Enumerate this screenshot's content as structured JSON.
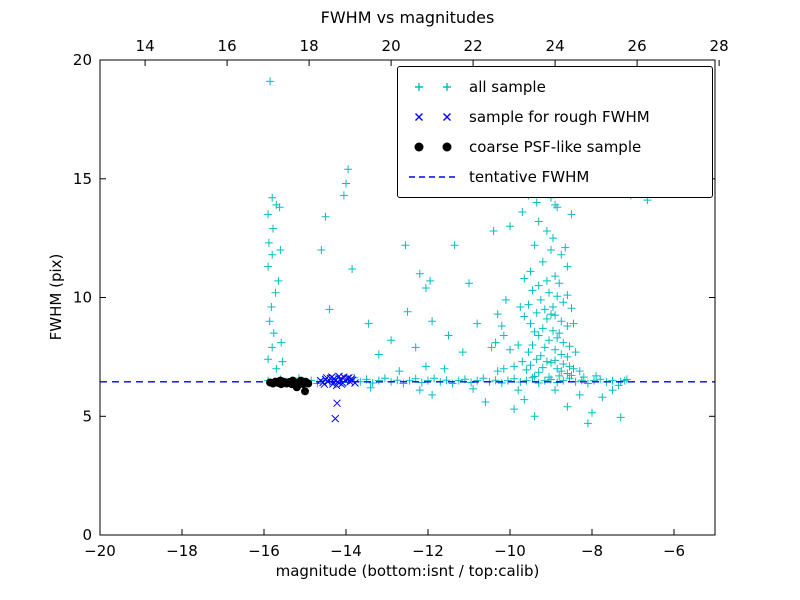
{
  "chart_data": {
    "type": "scatter",
    "title": "FWHM vs magnitudes",
    "xlabel": "magnitude (bottom:isnt / top:calib)",
    "ylabel": "FWHM (pix)",
    "xlim": [
      -20,
      -5
    ],
    "ylim": [
      0,
      20
    ],
    "grid": false,
    "legend_position": "upper right",
    "axes": {
      "x_ticks": [
        -20,
        -18,
        -16,
        -14,
        -12,
        -10,
        -8,
        -6
      ],
      "x_tick_labels": [
        "−20",
        "−18",
        "−16",
        "−14",
        "−12",
        "−10",
        "−8",
        "−6"
      ],
      "top_ticks": [
        14,
        16,
        18,
        20,
        22,
        24,
        26,
        28
      ],
      "top_tick_labels": [
        "14",
        "16",
        "18",
        "20",
        "22",
        "24",
        "26",
        "28"
      ],
      "top_axis_range": [
        12.9,
        27.9
      ],
      "y_ticks": [
        0,
        5,
        10,
        15,
        20
      ],
      "y_tick_labels": [
        "0",
        "5",
        "10",
        "15",
        "20"
      ],
      "axis_color": "#000000",
      "background": "#ffffff"
    },
    "series": [
      {
        "name": "all sample",
        "marker": "+",
        "color": "#00bfbf",
        "points": [
          [
            -15.9,
            6.5
          ],
          [
            -15.75,
            6.4
          ],
          [
            -15.6,
            6.55
          ],
          [
            -15.45,
            6.45
          ],
          [
            -15.3,
            6.5
          ],
          [
            -15.15,
            6.6
          ],
          [
            -15.0,
            6.45
          ],
          [
            -14.85,
            6.5
          ],
          [
            -14.7,
            6.38
          ],
          [
            -14.55,
            6.52
          ],
          [
            -14.4,
            6.45
          ],
          [
            -14.25,
            6.58
          ],
          [
            -14.1,
            6.42
          ],
          [
            -13.95,
            6.5
          ],
          [
            -13.8,
            6.62
          ],
          [
            -13.65,
            6.45
          ],
          [
            -13.5,
            6.55
          ],
          [
            -13.35,
            6.4
          ],
          [
            -13.2,
            6.5
          ],
          [
            -13.05,
            6.6
          ],
          [
            -12.9,
            6.45
          ],
          [
            -12.75,
            6.52
          ],
          [
            -12.6,
            6.38
          ],
          [
            -12.45,
            6.5
          ],
          [
            -12.3,
            6.58
          ],
          [
            -12.15,
            6.42
          ],
          [
            -12.0,
            6.5
          ],
          [
            -11.85,
            6.6
          ],
          [
            -11.7,
            6.44
          ],
          [
            -11.55,
            6.52
          ],
          [
            -11.4,
            6.38
          ],
          [
            -11.25,
            6.5
          ],
          [
            -11.1,
            6.56
          ],
          [
            -10.95,
            6.42
          ],
          [
            -10.8,
            6.5
          ],
          [
            -10.65,
            6.6
          ],
          [
            -10.5,
            6.45
          ],
          [
            -10.35,
            6.52
          ],
          [
            -10.2,
            6.4
          ],
          [
            -10.05,
            6.5
          ],
          [
            -9.9,
            6.58
          ],
          [
            -9.75,
            6.44
          ],
          [
            -9.6,
            6.5
          ],
          [
            -9.45,
            6.62
          ],
          [
            -9.3,
            6.4
          ],
          [
            -9.15,
            6.5
          ],
          [
            -9.0,
            6.55
          ],
          [
            -8.85,
            6.42
          ],
          [
            -8.7,
            6.5
          ],
          [
            -8.55,
            6.6
          ],
          [
            -8.4,
            6.45
          ],
          [
            -8.25,
            6.52
          ],
          [
            -8.1,
            6.38
          ],
          [
            -7.95,
            6.5
          ],
          [
            -7.8,
            6.56
          ],
          [
            -7.65,
            6.44
          ],
          [
            -7.5,
            6.5
          ],
          [
            -7.35,
            6.3
          ],
          [
            -12.7,
            6.9
          ],
          [
            -12.2,
            6.1
          ],
          [
            -11.6,
            7.0
          ],
          [
            -10.9,
            6.15
          ],
          [
            -10.3,
            6.9
          ],
          [
            -13.4,
            6.2
          ],
          [
            -9.8,
            6.1
          ],
          [
            -12.05,
            7.1
          ],
          [
            -15.85,
            19.1
          ],
          [
            -15.8,
            14.2
          ],
          [
            -15.7,
            13.9
          ],
          [
            -15.9,
            13.5
          ],
          [
            -15.78,
            12.9
          ],
          [
            -15.88,
            12.3
          ],
          [
            -15.8,
            11.8
          ],
          [
            -15.9,
            11.3
          ],
          [
            -15.72,
            10.2
          ],
          [
            -15.82,
            9.6
          ],
          [
            -15.86,
            9.0
          ],
          [
            -15.76,
            8.5
          ],
          [
            -15.8,
            7.9
          ],
          [
            -15.9,
            7.4
          ],
          [
            -15.7,
            7.0
          ],
          [
            -15.6,
            12.0
          ],
          [
            -15.62,
            13.8
          ],
          [
            -15.65,
            10.7
          ],
          [
            -15.58,
            8.1
          ],
          [
            -15.55,
            7.3
          ],
          [
            -14.6,
            12.0
          ],
          [
            -13.95,
            15.4
          ],
          [
            -14.0,
            14.8
          ],
          [
            -14.05,
            14.3
          ],
          [
            -14.5,
            13.4
          ],
          [
            -13.85,
            11.2
          ],
          [
            -14.4,
            9.5
          ],
          [
            -12.55,
            12.2
          ],
          [
            -11.35,
            12.2
          ],
          [
            -12.2,
            11.0
          ],
          [
            -11.95,
            10.7
          ],
          [
            -12.05,
            10.4
          ],
          [
            -12.5,
            9.4
          ],
          [
            -12.9,
            8.2
          ],
          [
            -12.3,
            7.9
          ],
          [
            -11.9,
            9.0
          ],
          [
            -11.5,
            8.4
          ],
          [
            -11.15,
            7.7
          ],
          [
            -11.0,
            10.6
          ],
          [
            -10.8,
            8.9
          ],
          [
            -13.2,
            7.6
          ],
          [
            -13.45,
            8.9
          ],
          [
            -10.45,
            7.9
          ],
          [
            -10.3,
            9.3
          ],
          [
            -10.15,
            8.4
          ],
          [
            -9.55,
            14.3
          ],
          [
            -9.35,
            14.0
          ],
          [
            -9.2,
            14.6
          ],
          [
            -9.0,
            14.2
          ],
          [
            -8.85,
            13.8
          ],
          [
            -8.6,
            14.9
          ],
          [
            -8.5,
            13.5
          ],
          [
            -9.3,
            13.2
          ],
          [
            -9.7,
            13.6
          ],
          [
            -8.9,
            15.2
          ],
          [
            -9.1,
            12.8
          ],
          [
            -8.95,
            12.5
          ],
          [
            -10.0,
            13.0
          ],
          [
            -8.9,
            13.9
          ],
          [
            -7.05,
            14.3
          ],
          [
            -6.65,
            14.1
          ],
          [
            -10.4,
            12.8
          ],
          [
            -9.4,
            12.2
          ],
          [
            -9.0,
            12.0
          ],
          [
            -8.75,
            11.8
          ],
          [
            -9.2,
            11.5
          ],
          [
            -8.6,
            11.3
          ],
          [
            -9.5,
            11.1
          ],
          [
            -8.9,
            10.9
          ],
          [
            -9.1,
            10.7
          ],
          [
            -8.8,
            10.6
          ],
          [
            -9.3,
            10.5
          ],
          [
            -8.65,
            12.1
          ],
          [
            -9.65,
            10.8
          ],
          [
            -9.45,
            10.3
          ],
          [
            -9.05,
            10.2
          ],
          [
            -8.85,
            10.05
          ],
          [
            -9.25,
            9.9
          ],
          [
            -8.7,
            9.8
          ],
          [
            -9.55,
            9.7
          ],
          [
            -8.95,
            9.6
          ],
          [
            -9.15,
            9.5
          ],
          [
            -8.6,
            10.1
          ],
          [
            -10.1,
            9.9
          ],
          [
            -8.5,
            9.55
          ],
          [
            -9.75,
            9.6
          ],
          [
            -9.35,
            9.35
          ],
          [
            -8.9,
            9.25
          ],
          [
            -9.1,
            9.1
          ],
          [
            -8.75,
            9.0
          ],
          [
            -9.5,
            8.9
          ],
          [
            -8.6,
            8.8
          ],
          [
            -9.2,
            8.7
          ],
          [
            -8.95,
            8.6
          ],
          [
            -9.4,
            8.55
          ],
          [
            -8.8,
            8.5
          ],
          [
            -10.2,
            8.8
          ],
          [
            -9.0,
            9.3
          ],
          [
            -8.45,
            8.9
          ],
          [
            -9.65,
            9.2
          ],
          [
            -9.3,
            8.4
          ],
          [
            -8.85,
            8.3
          ],
          [
            -9.05,
            8.2
          ],
          [
            -8.7,
            8.1
          ],
          [
            -9.45,
            8.0
          ],
          [
            -8.55,
            7.95
          ],
          [
            -9.15,
            7.9
          ],
          [
            -8.9,
            7.8
          ],
          [
            -9.55,
            7.7
          ],
          [
            -8.75,
            7.6
          ],
          [
            -9.25,
            7.55
          ],
          [
            -8.6,
            7.5
          ],
          [
            -10.0,
            7.8
          ],
          [
            -10.35,
            8.1
          ],
          [
            -8.4,
            7.7
          ],
          [
            -9.8,
            8.0
          ],
          [
            -9.35,
            7.4
          ],
          [
            -8.9,
            7.35
          ],
          [
            -9.1,
            7.3
          ],
          [
            -8.7,
            7.2
          ],
          [
            -9.5,
            7.15
          ],
          [
            -8.55,
            7.1
          ],
          [
            -9.2,
            7.05
          ],
          [
            -8.85,
            7.0
          ],
          [
            -9.6,
            6.95
          ],
          [
            -8.75,
            6.9
          ],
          [
            -9.3,
            6.85
          ],
          [
            -8.6,
            6.8
          ],
          [
            -9.0,
            7.25
          ],
          [
            -9.9,
            7.1
          ],
          [
            -10.15,
            7.0
          ],
          [
            -8.45,
            7.0
          ],
          [
            -8.3,
            6.9
          ],
          [
            -9.7,
            7.3
          ],
          [
            -9.05,
            6.65
          ],
          [
            -8.8,
            6.7
          ],
          [
            -8.5,
            6.72
          ],
          [
            -9.4,
            6.68
          ],
          [
            -8.2,
            6.65
          ],
          [
            -7.9,
            6.7
          ],
          [
            -11.9,
            5.9
          ],
          [
            -10.6,
            5.6
          ],
          [
            -9.9,
            5.3
          ],
          [
            -9.4,
            5.0
          ],
          [
            -8.6,
            5.4
          ],
          [
            -8.1,
            4.7
          ],
          [
            -7.75,
            5.8
          ],
          [
            -7.5,
            6.1
          ],
          [
            -8.3,
            5.9
          ],
          [
            -9.65,
            5.7
          ],
          [
            -8.0,
            5.15
          ],
          [
            -8.9,
            6.1
          ],
          [
            -7.2,
            6.5
          ],
          [
            -7.15,
            6.55
          ],
          [
            -7.3,
            6.45
          ],
          [
            -7.3,
            4.95
          ]
        ]
      },
      {
        "name": "sample for rough FWHM",
        "marker": "x",
        "color": "#0000ff",
        "points": [
          [
            -14.62,
            6.5
          ],
          [
            -14.56,
            6.42
          ],
          [
            -14.5,
            6.55
          ],
          [
            -14.44,
            6.46
          ],
          [
            -14.38,
            6.6
          ],
          [
            -14.32,
            6.36
          ],
          [
            -14.26,
            6.5
          ],
          [
            -14.2,
            6.44
          ],
          [
            -14.14,
            6.56
          ],
          [
            -14.08,
            6.4
          ],
          [
            -14.02,
            6.5
          ],
          [
            -13.96,
            6.6
          ],
          [
            -13.9,
            6.45
          ],
          [
            -13.84,
            6.52
          ],
          [
            -13.78,
            6.4
          ],
          [
            -14.47,
            6.62
          ],
          [
            -14.29,
            6.58
          ],
          [
            -14.11,
            6.35
          ],
          [
            -13.93,
            6.62
          ],
          [
            -14.35,
            6.65
          ],
          [
            -14.53,
            6.35
          ],
          [
            -14.17,
            6.68
          ],
          [
            -13.87,
            6.57
          ],
          [
            -14.05,
            6.65
          ],
          [
            -14.23,
            6.3
          ],
          [
            -14.22,
            5.55
          ],
          [
            -14.26,
            4.9
          ]
        ]
      },
      {
        "name": "coarse PSF-like sample",
        "marker": "o",
        "color": "#000000",
        "points": [
          [
            -15.85,
            6.42
          ],
          [
            -15.78,
            6.38
          ],
          [
            -15.72,
            6.46
          ],
          [
            -15.65,
            6.4
          ],
          [
            -15.58,
            6.35
          ],
          [
            -15.52,
            6.45
          ],
          [
            -15.45,
            6.38
          ],
          [
            -15.38,
            6.44
          ],
          [
            -15.32,
            6.35
          ],
          [
            -15.25,
            6.42
          ],
          [
            -15.18,
            6.3
          ],
          [
            -15.12,
            6.44
          ],
          [
            -15.05,
            6.36
          ],
          [
            -14.98,
            6.45
          ],
          [
            -14.92,
            6.38
          ],
          [
            -15.3,
            6.5
          ],
          [
            -15.6,
            6.5
          ],
          [
            -15.1,
            6.5
          ],
          [
            -15.2,
            6.22
          ],
          [
            -15.0,
            6.05
          ]
        ]
      },
      {
        "name": "tentative FWHM",
        "type": "hline",
        "y": 6.45,
        "color": "#0000ff",
        "linestyle": "--"
      }
    ]
  }
}
